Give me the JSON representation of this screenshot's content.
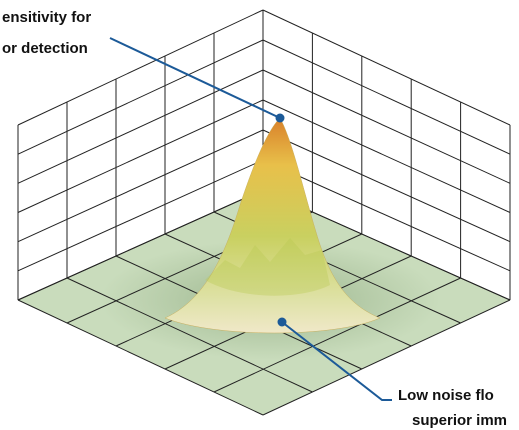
{
  "callouts": [
    {
      "lines": [
        "ensitivity for",
        "or detection"
      ]
    },
    {
      "lines": [
        "Low noise flo",
        "superior imm"
      ]
    }
  ]
}
